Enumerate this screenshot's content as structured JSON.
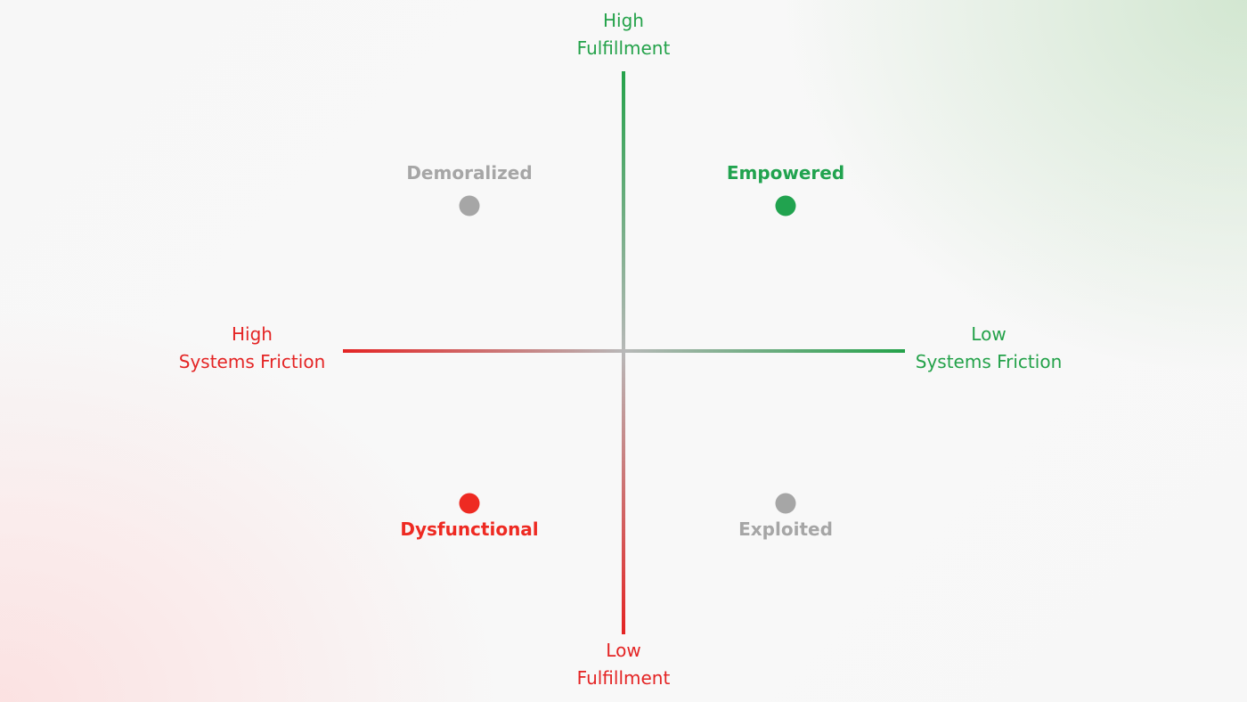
{
  "axes": {
    "top": {
      "line1": "High",
      "line2": "Fulfillment",
      "color": "#24a24a"
    },
    "bottom": {
      "line1": "Low",
      "line2": "Fulfillment",
      "color": "#e42424"
    },
    "left": {
      "line1": "High",
      "line2": "Systems Friction",
      "color": "#e42424"
    },
    "right": {
      "line1": "Low",
      "line2": "Systems Friction",
      "color": "#24a24a"
    }
  },
  "quadrants": {
    "top_left": {
      "label": "Demoralized",
      "color": "#a6a6a6"
    },
    "top_right": {
      "label": "Empowered",
      "color": "#21a34f"
    },
    "bottom_left": {
      "label": "Dysfunctional",
      "color": "#ee2a22"
    },
    "bottom_right": {
      "label": "Exploited",
      "color": "#a6a6a6"
    }
  },
  "colors": {
    "positive": "#24a24a",
    "negative": "#e42424",
    "neutral": "#b4b4b4"
  }
}
